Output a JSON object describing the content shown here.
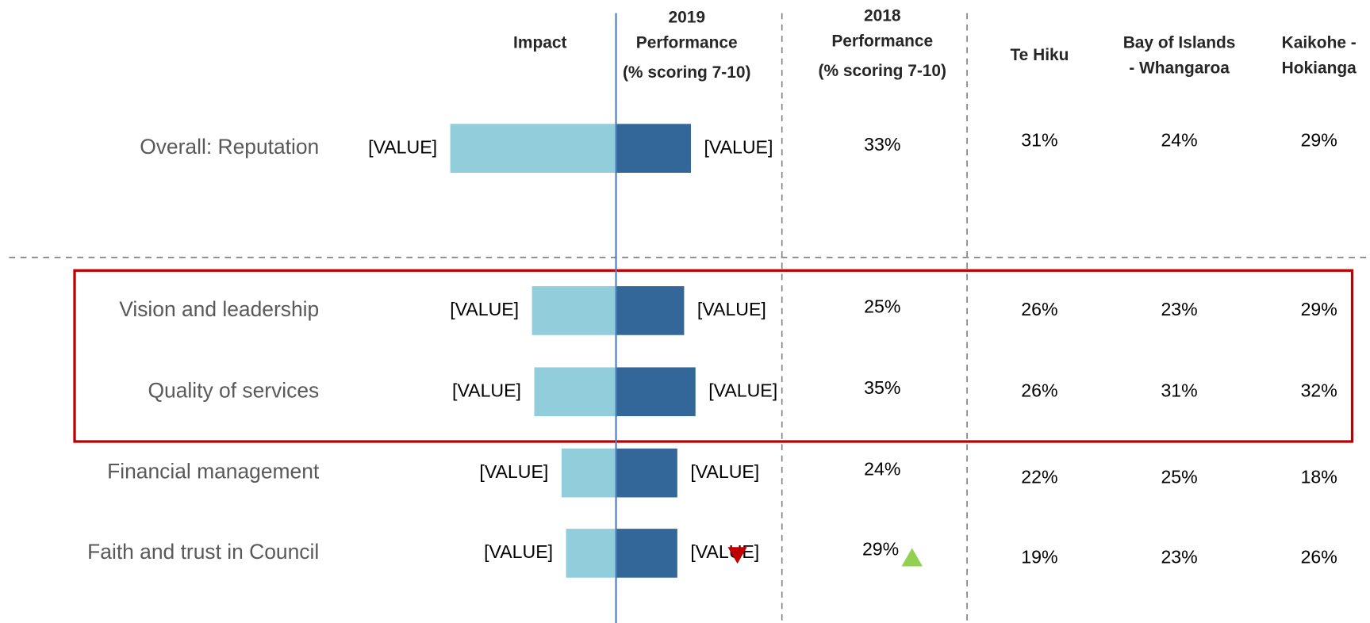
{
  "chart_data": {
    "type": "diverging-bar",
    "headers": {
      "impact": "Impact",
      "perf2019": [
        "2019",
        "Performance",
        "(% scoring 7-10)"
      ],
      "perf2018": [
        "2018",
        "Performance",
        "(% scoring 7-10)"
      ],
      "regions": [
        [
          "Te Hiku"
        ],
        [
          "Bay of Islands",
          "- Whangaroa"
        ],
        [
          "Kaikohe -",
          "Hokianga"
        ]
      ]
    },
    "categories": [
      "Overall: Reputation",
      "Vision and leadership",
      "Quality of services",
      "Financial management",
      "Faith and trust in Council"
    ],
    "series": [
      {
        "name": "Impact",
        "color": "#92cddc",
        "values": [
          73,
          37,
          36,
          24,
          22
        ],
        "value_labels": [
          "[VALUE]",
          "[VALUE]",
          "[VALUE]",
          "[VALUE]",
          "[VALUE]"
        ]
      },
      {
        "color": "#336699",
        "values": [
          33,
          30,
          35,
          27,
          27
        ],
        "value_labels": [
          "[VALUE]",
          "[VALUE]",
          "[VALUE]",
          "[VALUE]",
          "[VALUE]"
        ]
      }
    ],
    "perf2018": {
      "values": [
        33,
        25,
        35,
        24,
        29
      ],
      "value_labels": [
        "33%",
        "25%",
        "35%",
        "24%",
        "29%"
      ]
    },
    "regions": [
      {
        "values": [
          31,
          26,
          26,
          22,
          19
        ],
        "value_labels": [
          "31%",
          "26%",
          "26%",
          "22%",
          "19%"
        ]
      },
      {
        "values": [
          24,
          23,
          31,
          25,
          23
        ],
        "value_labels": [
          "24%",
          "23%",
          "31%",
          "25%",
          "23%"
        ]
      },
      {
        "values": [
          29,
          29,
          32,
          18,
          26
        ],
        "value_labels": [
          "29%",
          "29%",
          "32%",
          "18%",
          "26%"
        ]
      }
    ]
  }
}
